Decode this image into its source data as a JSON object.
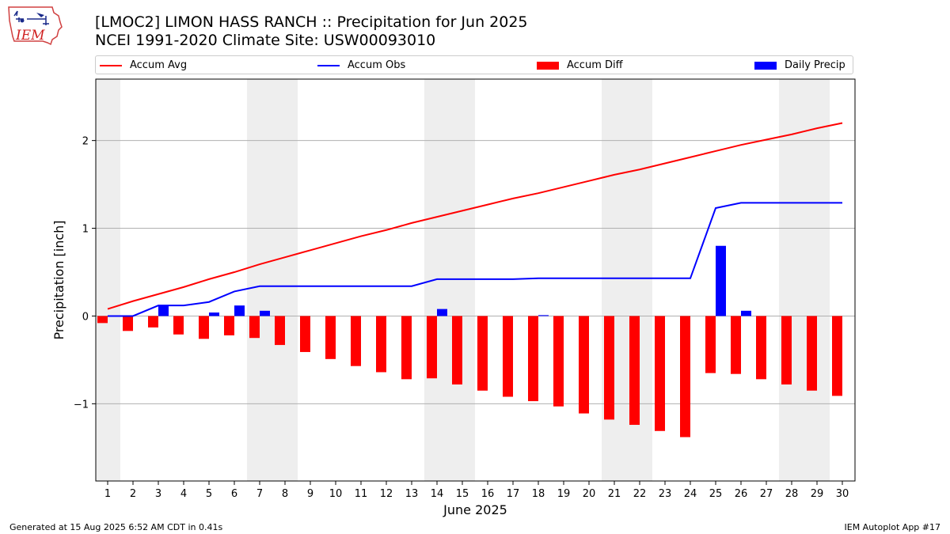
{
  "header": {
    "title_line1": "[LMOC2] LIMON HASS RANCH :: Precipitation for Jun 2025",
    "title_line2": "NCEI 1991-2020 Climate Site: USW00093010"
  },
  "logo": {
    "text": "IEM"
  },
  "legend": {
    "items": [
      {
        "label": "Accum Avg",
        "kind": "line",
        "color": "#ff0000"
      },
      {
        "label": "Accum Obs",
        "kind": "line",
        "color": "#0000ff"
      },
      {
        "label": "Accum Diff",
        "kind": "bar",
        "color": "#ff0000"
      },
      {
        "label": "Daily Precip",
        "kind": "bar",
        "color": "#0000ff"
      }
    ]
  },
  "chart_data": {
    "type": "bar",
    "x": [
      1,
      2,
      3,
      4,
      5,
      6,
      7,
      8,
      9,
      10,
      11,
      12,
      13,
      14,
      15,
      16,
      17,
      18,
      19,
      20,
      21,
      22,
      23,
      24,
      25,
      26,
      27,
      28,
      29,
      30
    ],
    "xlabel": "June 2025",
    "ylabel": "Precipitation [inch]",
    "ylim": [
      -1.88,
      2.7
    ],
    "yticks": [
      -1,
      0,
      1,
      2
    ],
    "ytick_labels": [
      "−1",
      "0",
      "1",
      "2"
    ],
    "grid": "horizontal",
    "legend_placement": "top",
    "weekend_shading": [
      [
        1,
        1
      ],
      [
        7,
        8
      ],
      [
        14,
        15
      ],
      [
        21,
        22
      ],
      [
        28,
        29
      ]
    ],
    "series": [
      {
        "name": "Accum Avg",
        "kind": "line",
        "color": "#ff0000",
        "values": [
          0.08,
          0.17,
          0.25,
          0.33,
          0.42,
          0.5,
          0.59,
          0.67,
          0.75,
          0.83,
          0.91,
          0.98,
          1.06,
          1.13,
          1.2,
          1.27,
          1.34,
          1.4,
          1.47,
          1.54,
          1.61,
          1.67,
          1.74,
          1.81,
          1.88,
          1.95,
          2.01,
          2.07,
          2.14,
          2.2
        ]
      },
      {
        "name": "Accum Obs",
        "kind": "line",
        "color": "#0000ff",
        "values": [
          0.0,
          0.0,
          0.12,
          0.12,
          0.16,
          0.28,
          0.34,
          0.34,
          0.34,
          0.34,
          0.34,
          0.34,
          0.34,
          0.42,
          0.42,
          0.42,
          0.42,
          0.43,
          0.43,
          0.43,
          0.43,
          0.43,
          0.43,
          0.43,
          1.23,
          1.29,
          1.29,
          1.29,
          1.29,
          1.29
        ]
      },
      {
        "name": "Accum Diff",
        "kind": "bar",
        "color": "#ff0000",
        "values": [
          -0.08,
          -0.17,
          -0.13,
          -0.21,
          -0.26,
          -0.22,
          -0.25,
          -0.33,
          -0.41,
          -0.49,
          -0.57,
          -0.64,
          -0.72,
          -0.71,
          -0.78,
          -0.85,
          -0.92,
          -0.97,
          -1.03,
          -1.11,
          -1.18,
          -1.24,
          -1.31,
          -1.38,
          -0.65,
          -0.66,
          -0.72,
          -0.78,
          -0.85,
          -0.91
        ]
      },
      {
        "name": "Daily Precip",
        "kind": "bar",
        "color": "#0000ff",
        "values": [
          0.0,
          0.0,
          0.12,
          0.0,
          0.04,
          0.12,
          0.06,
          0.0,
          0.0,
          0.0,
          0.0,
          0.0,
          0.0,
          0.08,
          0.0,
          0.0,
          0.0,
          0.01,
          0.0,
          0.0,
          0.0,
          0.0,
          0.0,
          0.0,
          0.8,
          0.06,
          0.0,
          0.0,
          0.0,
          0.0
        ]
      }
    ]
  },
  "footer": {
    "left": "Generated at 15 Aug 2025 6:52 AM CDT in 0.41s",
    "right": "IEM Autoplot App #17"
  }
}
